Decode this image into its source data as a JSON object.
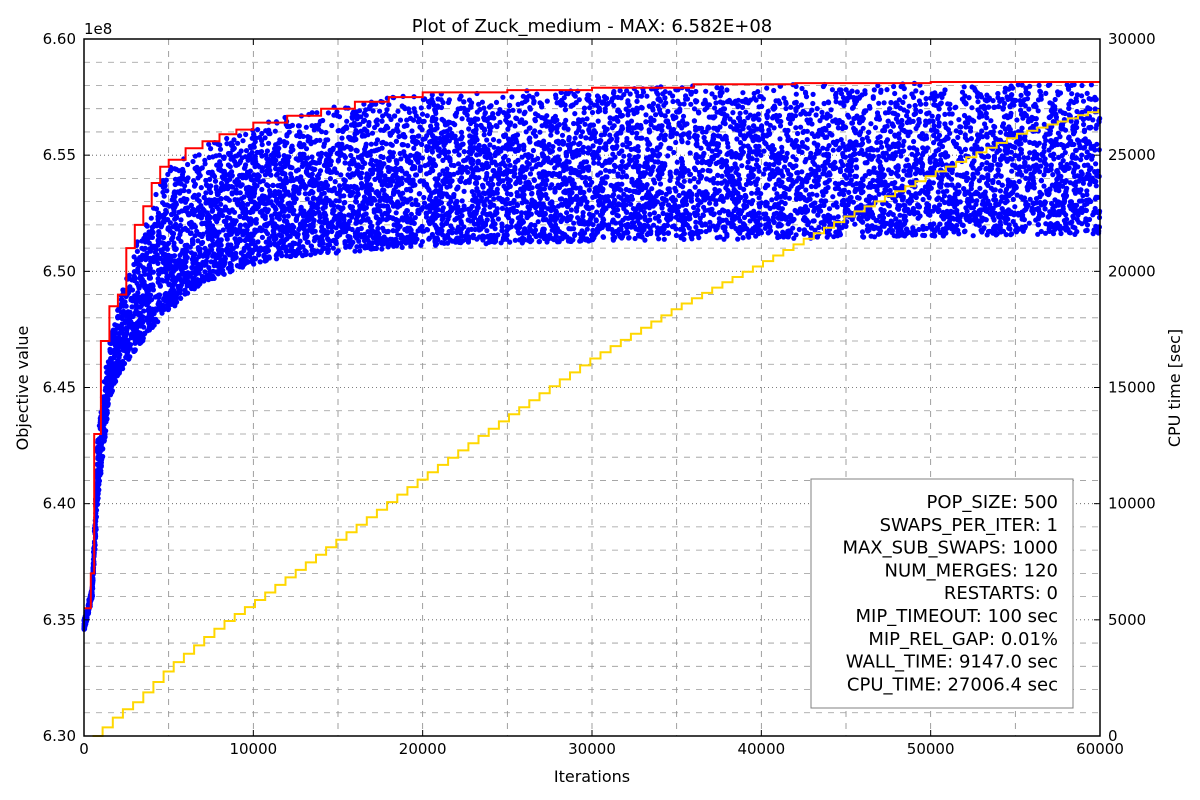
{
  "chart_data": {
    "type": "scatter",
    "title": "Plot of Zuck_medium - MAX: 6.582E+08",
    "xlabel": "Iterations",
    "ylabel": "Objective value",
    "y2label": "CPU time [sec]",
    "y_multiplier": "1e8",
    "xlim": [
      0,
      60000
    ],
    "ylim": [
      6.3,
      6.6
    ],
    "y2lim": [
      0,
      30000
    ],
    "x_ticks": [
      "0",
      "10000",
      "20000",
      "30000",
      "40000",
      "50000",
      "60000"
    ],
    "y_ticks": [
      "6.30",
      "6.35",
      "6.40",
      "6.45",
      "6.50",
      "6.55",
      "6.60"
    ],
    "y2_ticks": [
      "0",
      "5000",
      "10000",
      "15000",
      "20000",
      "25000",
      "30000"
    ],
    "grid": true,
    "colors": {
      "population": "#0000ff",
      "best": "#ff0000",
      "cpu_time": "#ffd700",
      "legend_border": "#808080"
    },
    "series": [
      {
        "values_note": "population objective values (scatter)",
        "upper_envelope": [
          [
            0,
            6.35
          ],
          [
            500,
            6.365
          ],
          [
            800,
            6.43
          ],
          [
            1500,
            6.47
          ],
          [
            2000,
            6.485
          ],
          [
            3000,
            6.51
          ],
          [
            4000,
            6.53
          ],
          [
            5000,
            6.545
          ],
          [
            6000,
            6.55
          ],
          [
            8000,
            6.558
          ],
          [
            10000,
            6.563
          ],
          [
            12000,
            6.567
          ],
          [
            15000,
            6.571
          ],
          [
            18000,
            6.575
          ],
          [
            20000,
            6.577
          ],
          [
            25000,
            6.578
          ],
          [
            30000,
            6.579
          ],
          [
            35000,
            6.58
          ],
          [
            40000,
            6.5805
          ],
          [
            50000,
            6.581
          ],
          [
            60000,
            6.5815
          ]
        ],
        "lower_envelope": [
          [
            0,
            6.345
          ],
          [
            500,
            6.36
          ],
          [
            800,
            6.4
          ],
          [
            1500,
            6.445
          ],
          [
            2000,
            6.455
          ],
          [
            3000,
            6.465
          ],
          [
            4000,
            6.475
          ],
          [
            5000,
            6.482
          ],
          [
            6000,
            6.49
          ],
          [
            8000,
            6.498
          ],
          [
            10000,
            6.503
          ],
          [
            12000,
            6.506
          ],
          [
            15000,
            6.508
          ],
          [
            20000,
            6.511
          ],
          [
            30000,
            6.513
          ],
          [
            40000,
            6.514
          ],
          [
            50000,
            6.515
          ],
          [
            60000,
            6.516
          ]
        ]
      },
      {
        "values_note": "best objective value (step line)",
        "points": [
          [
            0,
            6.355
          ],
          [
            400,
            6.37
          ],
          [
            600,
            6.43
          ],
          [
            1000,
            6.47
          ],
          [
            1500,
            6.485
          ],
          [
            2000,
            6.49
          ],
          [
            2500,
            6.51
          ],
          [
            3000,
            6.52
          ],
          [
            3500,
            6.528
          ],
          [
            4000,
            6.538
          ],
          [
            4500,
            6.545
          ],
          [
            5000,
            6.548
          ],
          [
            6000,
            6.553
          ],
          [
            7000,
            6.556
          ],
          [
            8000,
            6.559
          ],
          [
            9000,
            6.561
          ],
          [
            10000,
            6.564
          ],
          [
            12000,
            6.567
          ],
          [
            14000,
            6.57
          ],
          [
            16000,
            6.573
          ],
          [
            18000,
            6.575
          ],
          [
            20000,
            6.577
          ],
          [
            25000,
            6.578
          ],
          [
            30000,
            6.579
          ],
          [
            36000,
            6.5805
          ],
          [
            42000,
            6.581
          ],
          [
            50000,
            6.5815
          ],
          [
            60000,
            6.5815
          ]
        ]
      },
      {
        "values_note": "CPU time on right axis (step line)",
        "points": [
          [
            500,
            0
          ],
          [
            1000,
            300
          ],
          [
            2000,
            1000
          ],
          [
            3000,
            1500
          ],
          [
            5000,
            3000
          ],
          [
            8000,
            4800
          ],
          [
            10000,
            5800
          ],
          [
            15000,
            8500
          ],
          [
            20000,
            11200
          ],
          [
            25000,
            13800
          ],
          [
            30000,
            16300
          ],
          [
            35000,
            18500
          ],
          [
            40000,
            20400
          ],
          [
            45000,
            22400
          ],
          [
            50000,
            24200
          ],
          [
            55000,
            25900
          ],
          [
            60000,
            27000
          ]
        ]
      }
    ],
    "legend_position": "lower-right",
    "legend": [
      "POP_SIZE: 500",
      "SWAPS_PER_ITER: 1",
      "MAX_SUB_SWAPS: 1000",
      "NUM_MERGES: 120",
      "RESTARTS: 0",
      "MIP_TIMEOUT: 100 sec",
      "MIP_REL_GAP: 0.01%",
      "WALL_TIME: 9147.0 sec",
      "CPU_TIME: 27006.4 sec"
    ]
  }
}
